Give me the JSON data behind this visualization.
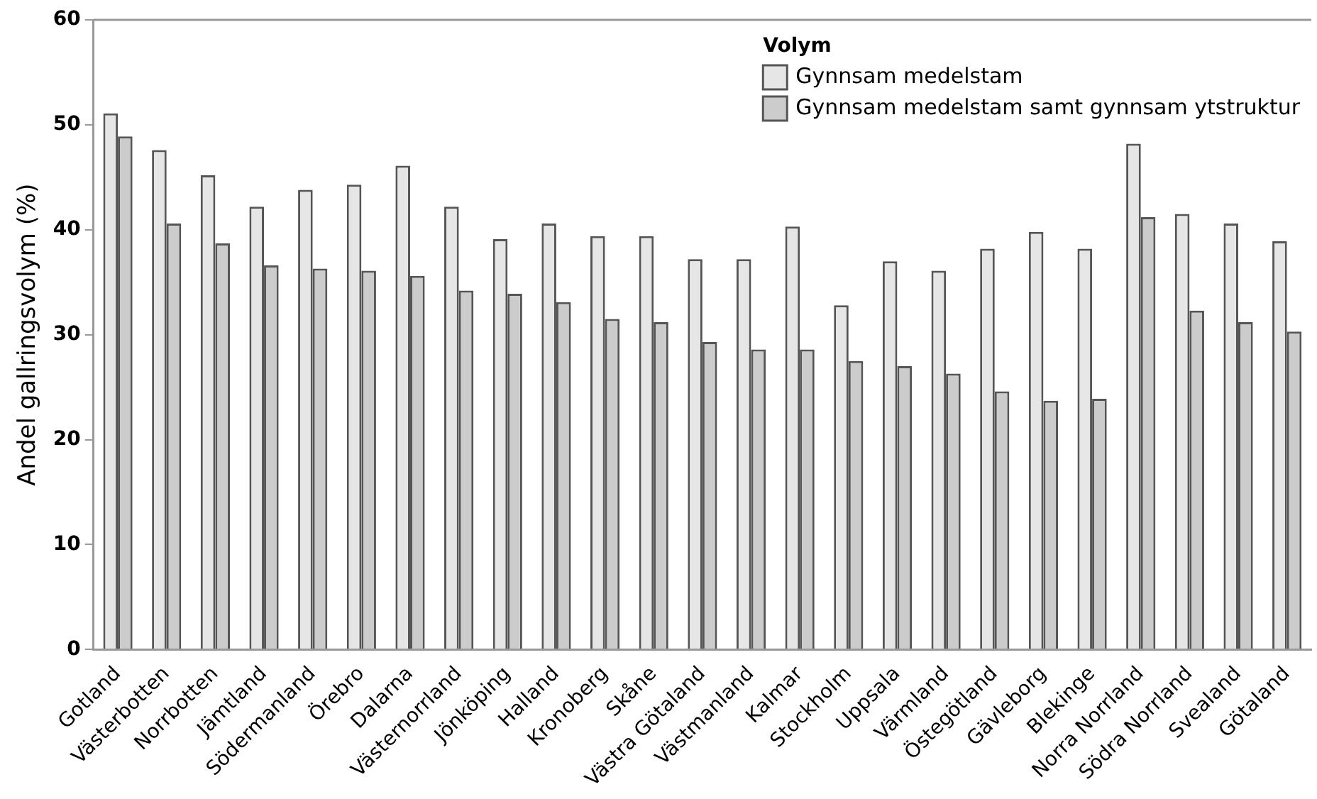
{
  "chart_data": {
    "type": "bar",
    "ylabel": "Andel gallringsvolym (%)",
    "legend_title": "Volym",
    "legend": "top right",
    "grid": false,
    "categories": [
      "Gotland",
      "Västerbotten",
      "Norrbotten",
      "Jämtland",
      "Södermanland",
      "Örebro",
      "Dalarna",
      "Västernorrland",
      "Jönköping",
      "Halland",
      "Kronoberg",
      "Skåne",
      "Västra Götaland",
      "Västmanland",
      "Kalmar",
      "Stockholm",
      "Uppsala",
      "Värmland",
      "Östegötland",
      "Gävleborg",
      "Blekinge",
      "Norra Norrland",
      "Södra Norrland",
      "Svealand",
      "Götaland"
    ],
    "series": [
      {
        "name": "Gynnsam medelstam",
        "color": "#e6e6e6",
        "values": [
          51.1,
          47.6,
          45.2,
          42.2,
          43.8,
          44.3,
          46.1,
          42.2,
          39.1,
          40.6,
          39.4,
          39.4,
          37.2,
          37.2,
          40.3,
          32.8,
          37.0,
          36.1,
          38.2,
          39.8,
          38.2,
          48.2,
          41.5,
          40.6,
          38.9
        ]
      },
      {
        "name": "Gynnsam medelstam samt gynnsam ytstruktur",
        "color": "#cccccc",
        "values": [
          48.9,
          40.6,
          38.7,
          36.6,
          36.3,
          36.1,
          35.6,
          34.2,
          33.9,
          33.1,
          31.5,
          31.2,
          29.3,
          28.6,
          28.6,
          27.5,
          27.0,
          26.3,
          24.6,
          23.7,
          23.9,
          41.2,
          32.3,
          31.2,
          30.3
        ]
      }
    ],
    "ylim": [
      0,
      60
    ],
    "yticks": [
      0,
      10,
      20,
      30,
      40,
      50,
      60
    ]
  }
}
